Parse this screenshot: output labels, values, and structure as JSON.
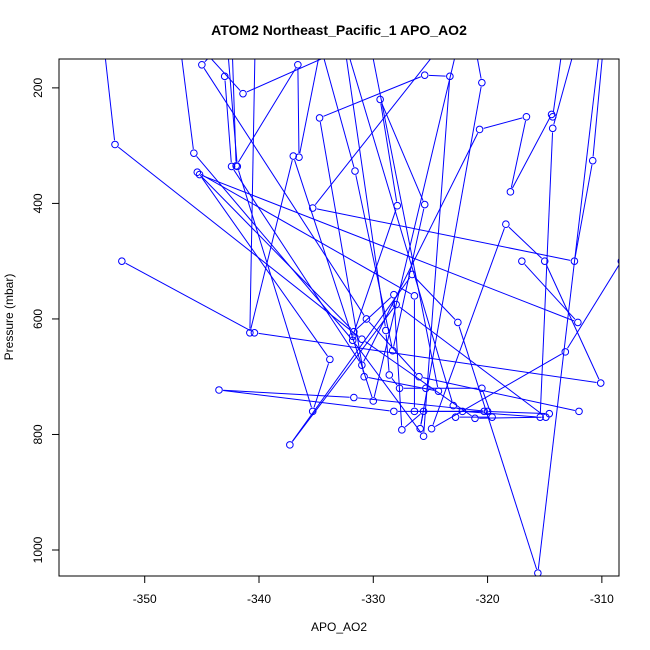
{
  "chart_data": {
    "type": "line",
    "title": "ATOM2 Northeast_Pacific_1 APO_AO2",
    "xlabel": "APO_AO2",
    "ylabel": "Pressure (mbar)",
    "xlim": [
      -357.5,
      -308.5
    ],
    "ylim": [
      1045,
      150
    ],
    "y_reversed": true,
    "x_ticks": [
      -350,
      -340,
      -330,
      -320,
      -310
    ],
    "y_ticks": [
      200,
      400,
      600,
      800,
      1000
    ],
    "series_color": "#0000ff",
    "grid": false,
    "legend": "none",
    "series": [
      {
        "x": [
          -354.0,
          -352.6,
          -331.0,
          -321.1,
          -314.9,
          -328.0,
          -337.3,
          -326.6,
          -322.6,
          -315.6,
          -309.6
        ],
        "y": [
          50,
          298,
          635,
          772,
          770,
          575,
          818,
          523,
          606,
          1040,
          30
        ]
      },
      {
        "x": [
          -347.2,
          -345.7,
          -331.8,
          -325.6,
          -323.3,
          -325.5,
          -334.7,
          -330.8,
          -324.3,
          -330.3
        ],
        "y": [
          80,
          313,
          637,
          803,
          180,
          178,
          252,
          700,
          725,
          120
        ]
      },
      {
        "x": [
          -343.0,
          -341.9,
          -335.3,
          -333.8,
          -345.2,
          -312.1,
          -317.0
        ],
        "y": [
          70,
          336,
          760,
          670,
          350,
          606,
          500
        ]
      },
      {
        "x": [
          -340.3,
          -340.8,
          -337.0,
          -330.0,
          -322.0,
          -335.3,
          -312.4,
          -310.8,
          -309.6
        ],
        "y": [
          80,
          624,
          318,
          742,
          75,
          408,
          500,
          326,
          70
        ]
      },
      {
        "x": [
          -330.0,
          -341.4,
          -346.0,
          -349.0
        ],
        "y": [
          110,
          210,
          110,
          80
        ]
      },
      {
        "x": [
          -322.0,
          -320.5,
          -325.9,
          -325.6,
          -327.5,
          -328.2,
          -331.7,
          -345.4,
          -326.4,
          -326.4,
          -320.0,
          -331.7,
          -343.5,
          -328.2,
          -320.3,
          -314.6
        ],
        "y": [
          30,
          191,
          790,
          760,
          792,
          558,
          622,
          346,
          560,
          760,
          760,
          736,
          723,
          760,
          760,
          764
        ]
      },
      {
        "x": [
          -308.3,
          -313.2,
          -324.9,
          -318.4,
          -315.0,
          -310.1,
          -340.4,
          -352.0
        ],
        "y": [
          500,
          657,
          790,
          436,
          500,
          711,
          624,
          500
        ]
      },
      {
        "x": [
          -342.5,
          -342.0,
          -336.6,
          -336.5,
          -333.7,
          -323.0,
          -322.2,
          -315.4,
          -314.3,
          -311.1
        ],
        "y": [
          40,
          335,
          160,
          320,
          40,
          750,
          760,
          770,
          270,
          40
        ]
      },
      {
        "x": [
          -343.0,
          -342.4,
          -331.0,
          -320.7,
          -316.6,
          -318.0,
          -314.4,
          -314.3,
          -313.1
        ],
        "y": [
          180,
          336,
          680,
          272,
          250,
          380,
          246,
          250,
          80
        ]
      },
      {
        "x": [
          -335.0,
          -331.6,
          -328.3,
          -325.5,
          -329.4,
          -327.9,
          -331.8
        ],
        "y": [
          100,
          344,
          655,
          402,
          220,
          404,
          630
        ]
      },
      {
        "x": [
          -338.0,
          -341.0,
          -345.0,
          -330.6,
          -326.0,
          -312.0
        ],
        "y": [
          40,
          80,
          160,
          600,
          700,
          760
        ]
      },
      {
        "x": [
          -333.0,
          -328.9,
          -328.6,
          -327.7,
          -325.4,
          -320.5,
          -319.6,
          -322.8
        ],
        "y": [
          60,
          620,
          697,
          720,
          720,
          720,
          770,
          770
        ]
      }
    ]
  }
}
